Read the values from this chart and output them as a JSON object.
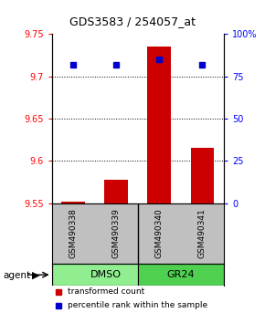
{
  "title": "GDS3583 / 254057_at",
  "samples": [
    "GSM490338",
    "GSM490339",
    "GSM490340",
    "GSM490341"
  ],
  "groups": [
    "DMSO",
    "DMSO",
    "GR24",
    "GR24"
  ],
  "group_labels": [
    "DMSO",
    "GR24"
  ],
  "bar_values": [
    9.552,
    9.578,
    9.735,
    9.615
  ],
  "bar_bottom": 9.55,
  "percentile_values": [
    82,
    82,
    85,
    82
  ],
  "percentile_max": 100,
  "ylim_left": [
    9.55,
    9.75
  ],
  "yticks_left": [
    9.55,
    9.6,
    9.65,
    9.7,
    9.75
  ],
  "yticks_right": [
    0,
    25,
    50,
    75,
    100
  ],
  "bar_color": "#CC0000",
  "dot_color": "#0000CC",
  "background_color": "#ffffff",
  "sample_bg": "#C0C0C0",
  "dmso_color": "#90EE90",
  "gr24_color": "#50D050",
  "legend_items": [
    "transformed count",
    "percentile rank within the sample"
  ],
  "agent_label": "agent",
  "group_divider": 2
}
